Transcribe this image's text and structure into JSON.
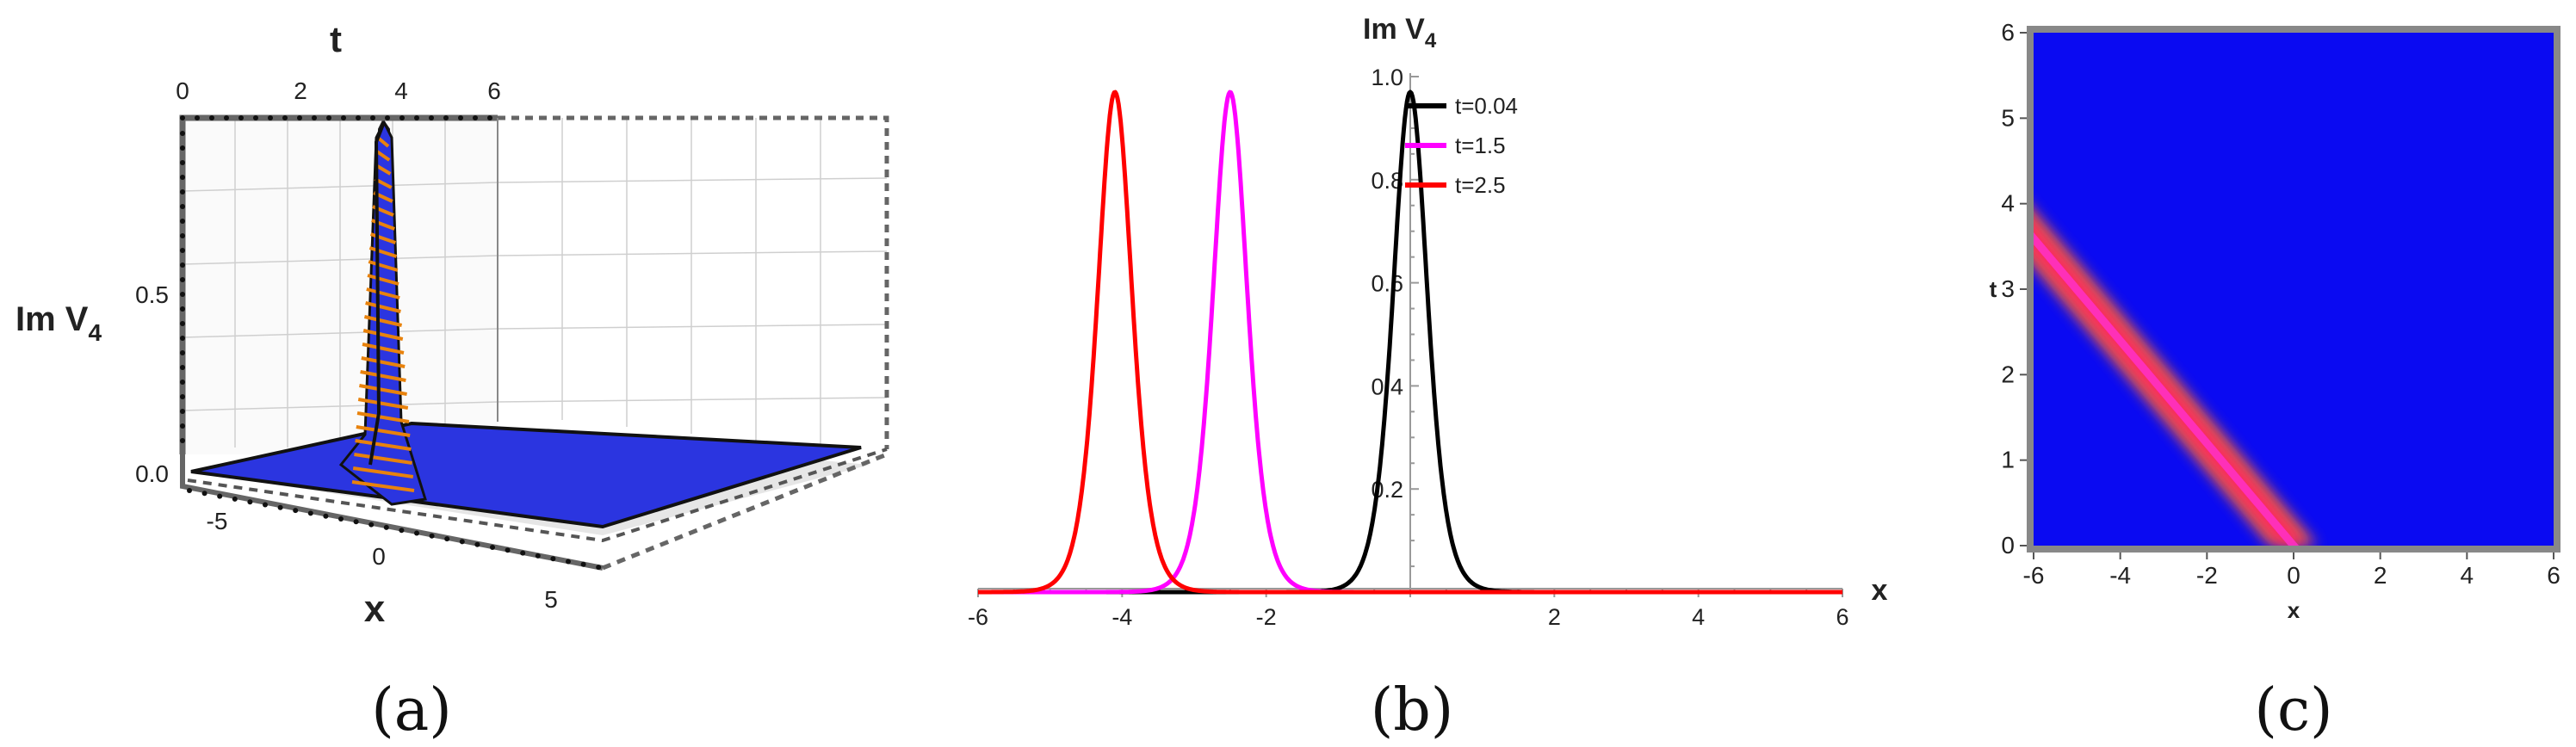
{
  "captions": {
    "a": "(a)",
    "b": "(b)",
    "c": "(c)"
  },
  "chart_data": [
    {
      "panel": "a",
      "type": "surface3d",
      "title": "",
      "xlabel": "x",
      "ylabel": "t",
      "zlabel": "Im V4",
      "zlabel_main": "Im V",
      "zlabel_sub": "4",
      "x_ticks": [
        "-5",
        "0",
        "5"
      ],
      "t_ticks": [
        "0",
        "2",
        "4",
        "6"
      ],
      "z_ticks": [
        "0.0",
        "0.5"
      ],
      "xlim": [
        -6,
        6
      ],
      "tlim": [
        0,
        6
      ],
      "zlim": [
        0,
        1
      ],
      "surface_color": "#2b35e0",
      "mesh_color": "#e8820c",
      "note_peak": 0.97
    },
    {
      "panel": "b",
      "type": "line",
      "title": "",
      "xlabel": "x",
      "ylabel": "Im V4",
      "ylabel_main": "Im V",
      "ylabel_sub": "4",
      "xlim": [
        -6,
        6
      ],
      "ylim": [
        0,
        1.0
      ],
      "x_ticks": [
        "-6",
        "-4",
        "-2",
        "2",
        "4",
        "6"
      ],
      "y_ticks": [
        "0.2",
        "0.4",
        "0.6",
        "0.8",
        "1.0"
      ],
      "legend_position": "top-right",
      "series": [
        {
          "name": "t=0.04",
          "color": "#000000",
          "center": 0.0,
          "peak": 0.97,
          "width": 0.32
        },
        {
          "name": "t=1.5",
          "color": "#ff00ff",
          "center": -2.5,
          "peak": 0.97,
          "width": 0.32
        },
        {
          "name": "t=2.5",
          "color": "#ff0000",
          "center": -4.1,
          "peak": 0.97,
          "width": 0.32
        }
      ]
    },
    {
      "panel": "c",
      "type": "heatmap",
      "title": "",
      "xlabel": "x",
      "ylabel": "t",
      "xlim": [
        -6,
        6
      ],
      "ylim": [
        0,
        6
      ],
      "x_ticks": [
        "-6",
        "-4",
        "-2",
        "0",
        "2",
        "4",
        "6"
      ],
      "y_ticks": [
        "0",
        "1",
        "2",
        "3",
        "4",
        "5",
        "6"
      ],
      "background_color": "#0a0af2",
      "ridge_color": "#ff1493",
      "ridge": {
        "x_at_t0": 0.0,
        "speed": -1.67
      }
    }
  ]
}
